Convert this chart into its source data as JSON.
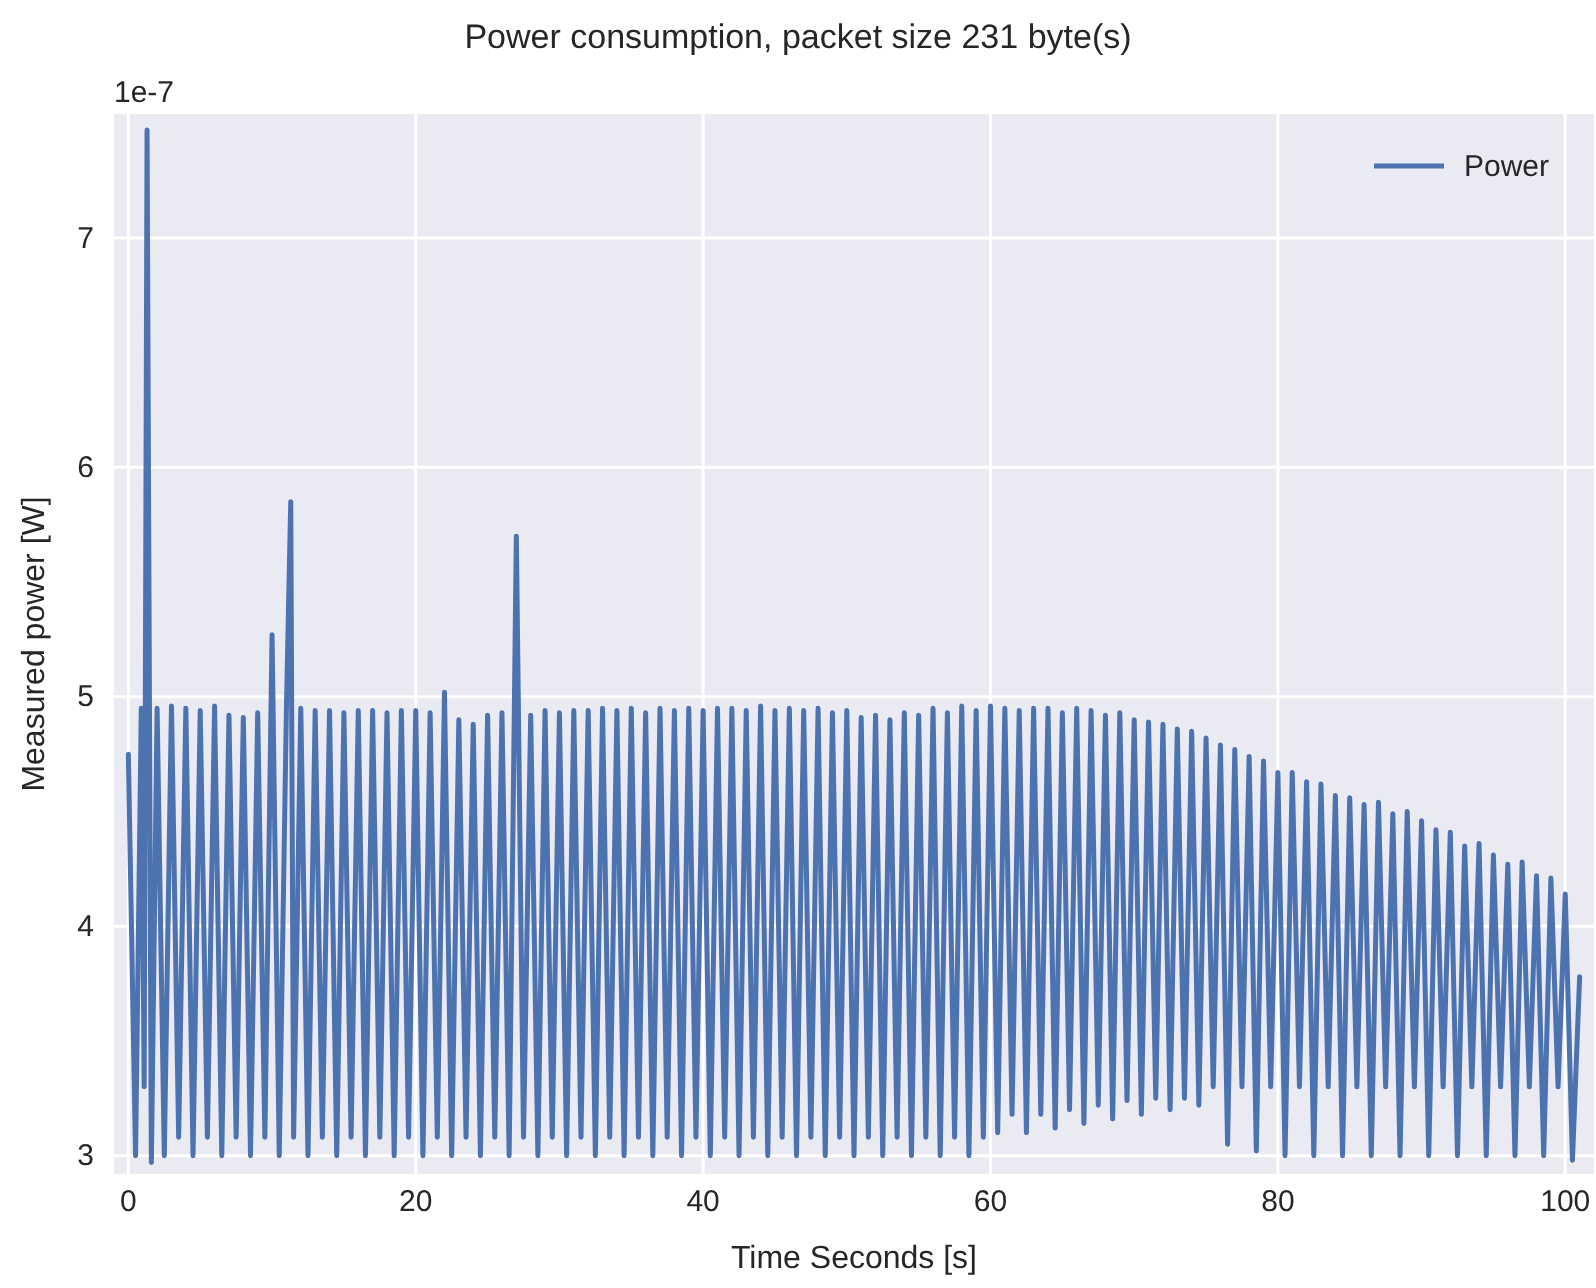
{
  "chart_data": {
    "type": "line",
    "title": "Power consumption, packet size 231 byte(s)",
    "xlabel": "Time Seconds [s]",
    "ylabel": "Measured power [W]",
    "annotations": [
      "1e-7"
    ],
    "xlim": [
      -1,
      102
    ],
    "xticks": [
      0,
      20,
      40,
      60,
      80,
      100
    ],
    "ylim": [
      2.92,
      7.54
    ],
    "yticks": [
      3,
      4,
      5,
      6,
      7
    ],
    "grid": true,
    "legend": "top right",
    "line_style": "solid",
    "marker": "none",
    "x": [
      0,
      0.5,
      0.9,
      1.1,
      1.3,
      1.6,
      2,
      2.5,
      3,
      3.5,
      4,
      4.5,
      5,
      5.5,
      6,
      6.5,
      7,
      7.5,
      8,
      8.5,
      9,
      9.5,
      10,
      10.5,
      11,
      11.3,
      11.5,
      12,
      12.5,
      13,
      13.5,
      14,
      14.5,
      15,
      15.5,
      16,
      16.5,
      17,
      17.5,
      18,
      18.5,
      19,
      19.5,
      20,
      20.5,
      21,
      21.5,
      22,
      22.5,
      23,
      23.5,
      24,
      24.5,
      25,
      25.5,
      26,
      26.5,
      27,
      27.5,
      28,
      28.5,
      29,
      29.5,
      30,
      30.5,
      31,
      31.5,
      32,
      32.5,
      33,
      33.5,
      34,
      34.5,
      35,
      35.5,
      36,
      36.5,
      37,
      37.5,
      38,
      38.5,
      39,
      39.5,
      40,
      40.5,
      41,
      41.5,
      42,
      42.5,
      43,
      43.5,
      44,
      44.5,
      45,
      45.5,
      46,
      46.5,
      47,
      47.5,
      48,
      48.5,
      49,
      49.5,
      50,
      50.5,
      51,
      51.5,
      52,
      52.5,
      53,
      53.5,
      54,
      54.5,
      55,
      55.5,
      56,
      56.5,
      57,
      57.5,
      58,
      58.5,
      59,
      59.5,
      60,
      60.5,
      61,
      61.5,
      62,
      62.5,
      63,
      63.5,
      64,
      64.5,
      65,
      65.5,
      66,
      66.5,
      67,
      67.5,
      68,
      68.5,
      69,
      69.5,
      70,
      70.5,
      71,
      71.5,
      72,
      72.5,
      73,
      73.5,
      74,
      74.5,
      75,
      75.5,
      76,
      76.5,
      77,
      77.5,
      78,
      78.5,
      79,
      79.5,
      80,
      80.5,
      81,
      81.5,
      82,
      82.5,
      83,
      83.5,
      84,
      84.5,
      85,
      85.5,
      86,
      86.5,
      87,
      87.5,
      88,
      88.5,
      89,
      89.5,
      90,
      90.5,
      91,
      91.5,
      92,
      92.5,
      93,
      93.5,
      94,
      94.5,
      95,
      95.5,
      96,
      96.5,
      97,
      97.5,
      98,
      98.5,
      99,
      99.5,
      100,
      100.5,
      101
    ],
    "series": [
      {
        "name": "Power",
        "color": "#4c72b0",
        "values": [
          4.75,
          3.0,
          4.95,
          3.3,
          7.47,
          2.97,
          4.95,
          3.0,
          4.96,
          3.08,
          4.95,
          3.0,
          4.94,
          3.08,
          4.96,
          3.0,
          4.92,
          3.08,
          4.91,
          3.0,
          4.93,
          3.08,
          5.27,
          3.0,
          4.95,
          5.85,
          3.08,
          4.95,
          3.0,
          4.94,
          3.08,
          4.94,
          3.0,
          4.93,
          3.08,
          4.94,
          3.0,
          4.94,
          3.08,
          4.93,
          3.0,
          4.94,
          3.08,
          4.94,
          3.0,
          4.93,
          3.08,
          5.02,
          3.0,
          4.9,
          3.08,
          4.88,
          3.0,
          4.92,
          3.08,
          4.93,
          3.0,
          5.7,
          3.08,
          4.92,
          3.0,
          4.94,
          3.08,
          4.93,
          3.0,
          4.94,
          3.08,
          4.94,
          3.0,
          4.95,
          3.08,
          4.94,
          3.0,
          4.95,
          3.08,
          4.93,
          3.0,
          4.95,
          3.08,
          4.94,
          3.0,
          4.95,
          3.08,
          4.94,
          3.0,
          4.95,
          3.08,
          4.95,
          3.0,
          4.94,
          3.08,
          4.96,
          3.0,
          4.94,
          3.08,
          4.95,
          3.0,
          4.94,
          3.08,
          4.95,
          3.0,
          4.93,
          3.08,
          4.94,
          3.0,
          4.91,
          3.08,
          4.92,
          3.0,
          4.9,
          3.08,
          4.93,
          3.0,
          4.92,
          3.08,
          4.95,
          3.0,
          4.93,
          3.08,
          4.96,
          3.0,
          4.94,
          3.08,
          4.96,
          3.1,
          4.95,
          3.18,
          4.94,
          3.1,
          4.95,
          3.18,
          4.95,
          3.12,
          4.93,
          3.2,
          4.95,
          3.14,
          4.94,
          3.22,
          4.92,
          3.16,
          4.93,
          3.24,
          4.9,
          3.18,
          4.89,
          3.25,
          4.88,
          3.2,
          4.86,
          3.25,
          4.85,
          3.22,
          4.82,
          3.3,
          4.79,
          3.05,
          4.77,
          3.3,
          4.74,
          3.02,
          4.72,
          3.3,
          4.67,
          3.0,
          4.67,
          3.3,
          4.63,
          3.0,
          4.62,
          3.3,
          4.57,
          3.0,
          4.56,
          3.3,
          4.53,
          3.0,
          4.54,
          3.3,
          4.49,
          3.0,
          4.5,
          3.3,
          4.46,
          3.0,
          4.42,
          3.3,
          4.41,
          3.0,
          4.35,
          3.3,
          4.36,
          3.0,
          4.31,
          3.3,
          4.27,
          3.0,
          4.28,
          3.3,
          4.22,
          3.0,
          4.21,
          3.3,
          4.14,
          2.98,
          3.78
        ]
      }
    ]
  }
}
